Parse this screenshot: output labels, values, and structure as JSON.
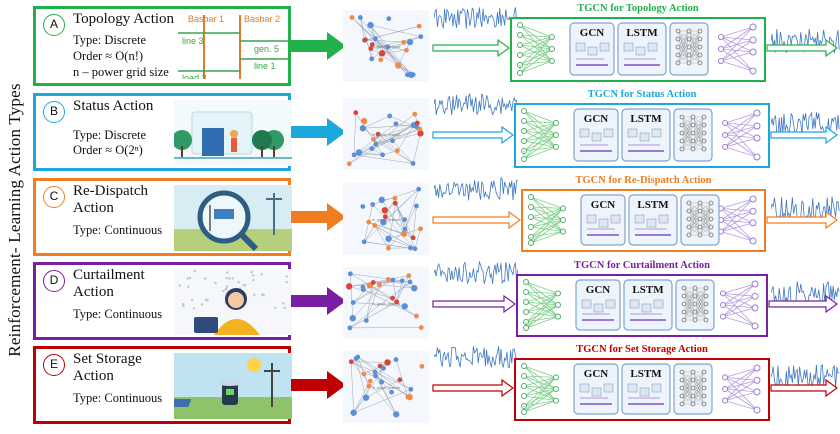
{
  "side_label": "Reinforcement- Learning Action Types",
  "topology_diagram": {
    "busbar1": "Basbar 1",
    "busbar2": "Basbar 2",
    "line3": "line 3",
    "gen5": "gen. 5",
    "line1": "line 1",
    "load3": "load 3"
  },
  "actions": [
    {
      "letter": "A",
      "title": "Topology Action",
      "desc": "Type: Discrete\nOrder ≈ O(n!)\nn – power grid size",
      "tgcn_title": "TGCN for Topology Action",
      "color": "#22b04b",
      "arrow_color": "#22b04b"
    },
    {
      "letter": "B",
      "title": "Status Action",
      "desc": "Type: Discrete\nOrder ≈ O(2ⁿ)",
      "tgcn_title": "TGCN for Status Action",
      "color": "#1ca8dd",
      "arrow_color": "#1ca8dd"
    },
    {
      "letter": "C",
      "title": "Re-Dispatch\nAction",
      "desc": "Type: Continuous",
      "tgcn_title": "TGCN for Re-Dispatch Action",
      "color": "#ef7d22",
      "arrow_color": "#ef7d22"
    },
    {
      "letter": "D",
      "title": "Curtailment\nAction",
      "desc": "Type: Continuous",
      "tgcn_title": "TGCN for Curtailment Action",
      "color": "#7a1fa2",
      "arrow_color": "#7a1fa2"
    },
    {
      "letter": "E",
      "title": "Set Storage\nAction",
      "desc": "Type: Continuous",
      "tgcn_title": "TGCN for Set Storage Action",
      "color": "#c00000",
      "arrow_color": "#c00000"
    }
  ],
  "blocks": {
    "gcn": "GCN",
    "lstm": "LSTM"
  },
  "graph_label": "re_graph_network",
  "colors": {
    "node_blue": "#5b8fd6",
    "node_orange": "#f08a4b",
    "node_red": "#d9453a",
    "edge": "#9aa7b8",
    "wave": "#3d78c2",
    "block_border": "#7fa3cf",
    "block_fill": "#eef4fb"
  }
}
